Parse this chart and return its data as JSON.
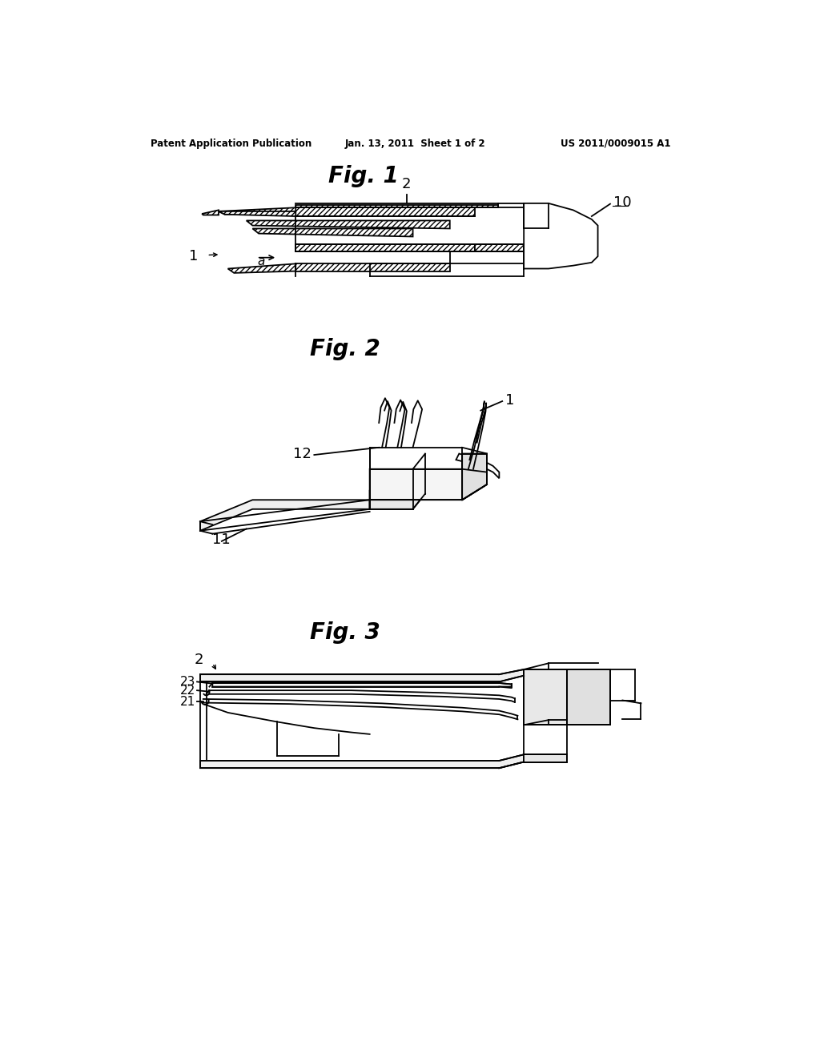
{
  "header_left": "Patent Application Publication",
  "header_mid": "Jan. 13, 2011  Sheet 1 of 2",
  "header_right": "US 2011/0009015 A1",
  "fig1_title": "Fig. 1",
  "fig2_title": "Fig. 2",
  "fig3_title": "Fig. 3",
  "bg_color": "#ffffff",
  "line_color": "#000000"
}
